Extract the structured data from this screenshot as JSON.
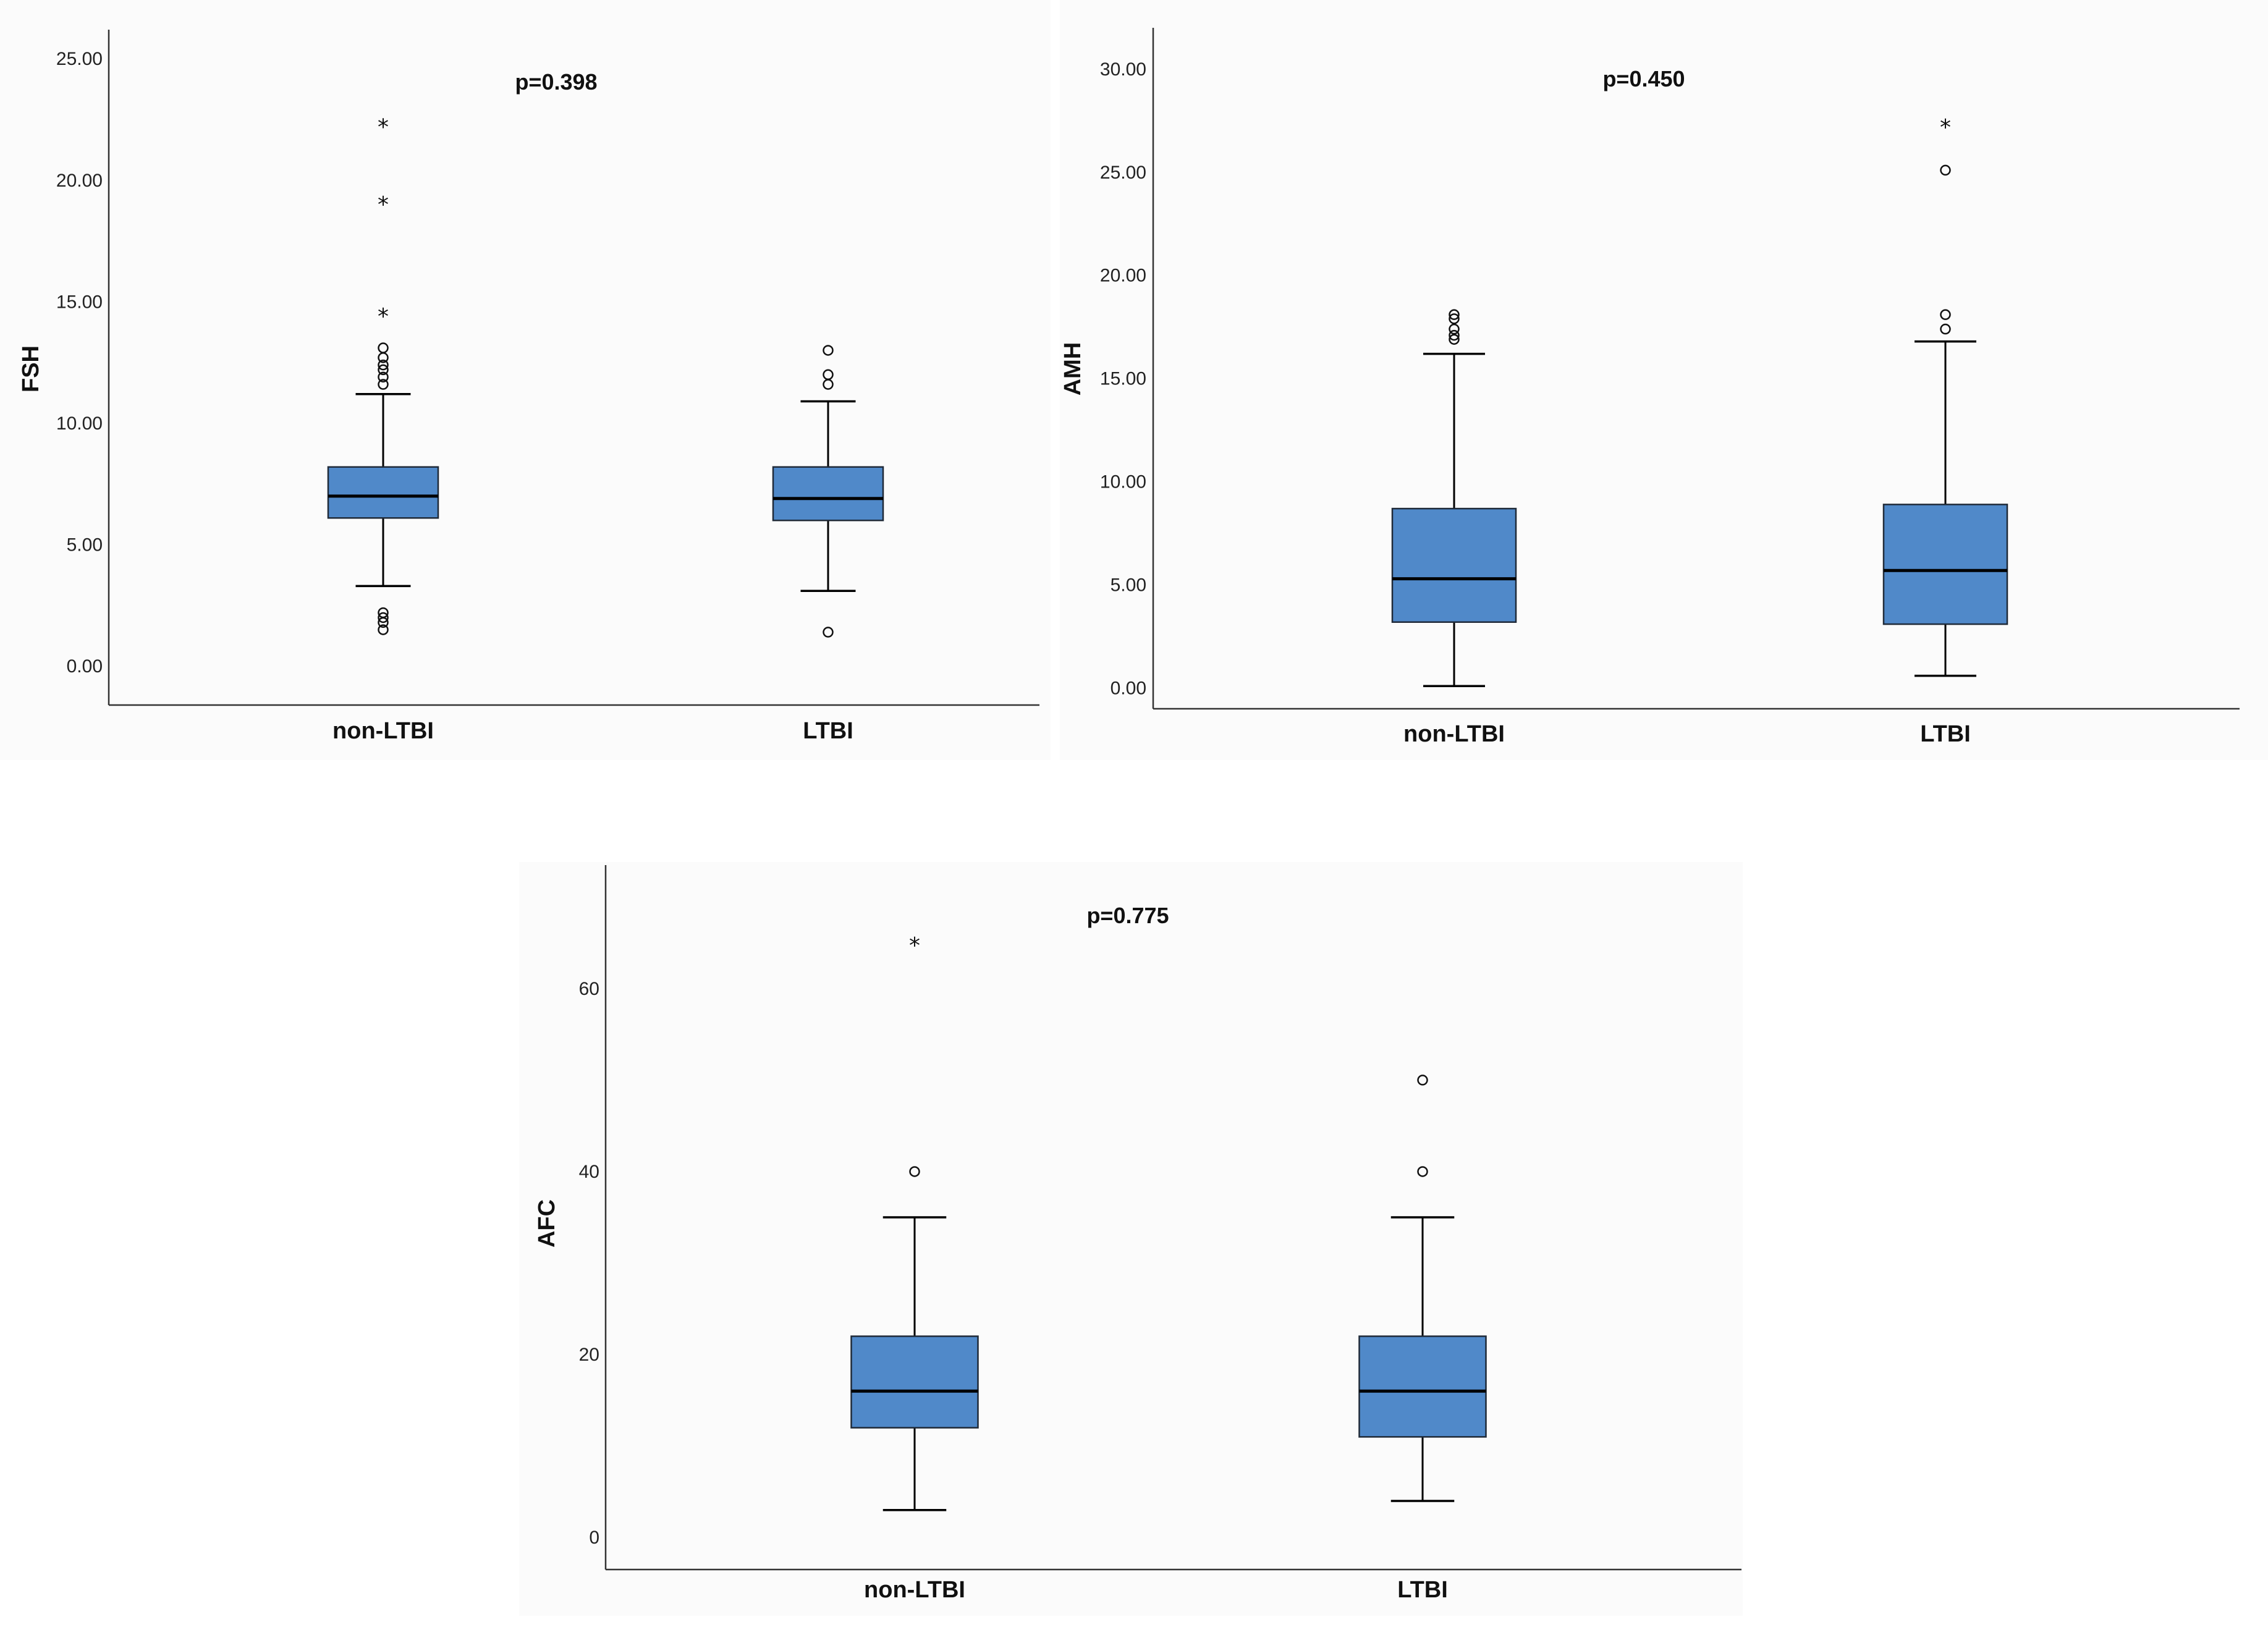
{
  "colors": {
    "box_fill": "#5089c9",
    "line": "#000000",
    "background": "#ffffff",
    "panel_bg": "#fbfbfb"
  },
  "chart_data": [
    {
      "type": "box",
      "ylabel": "FSH",
      "annotation": "p=0.398",
      "ylim": [
        -1.6,
        26.2
      ],
      "yticks": [
        0,
        5,
        10,
        15,
        20,
        25
      ],
      "tick_decimals": 2,
      "categories": [
        "non-LTBI",
        "LTBI"
      ],
      "boxes": [
        {
          "category": "non-LTBI",
          "whisker_low": 3.3,
          "q1": 6.1,
          "median": 7.0,
          "q3": 8.2,
          "whisker_high": 11.2,
          "outliers": [
            13.1,
            12.7,
            12.4,
            12.2,
            11.9,
            11.6,
            2.2,
            2.0,
            1.8,
            1.5
          ],
          "extremes": [
            22.3,
            19.1,
            14.5
          ]
        },
        {
          "category": "LTBI",
          "whisker_low": 3.1,
          "q1": 6.0,
          "median": 6.9,
          "q3": 8.2,
          "whisker_high": 10.9,
          "outliers": [
            13.0,
            12.0,
            11.6,
            1.4
          ],
          "extremes": []
        }
      ]
    },
    {
      "type": "box",
      "ylabel": "AMH",
      "annotation": "p=0.450",
      "ylim": [
        -1.0,
        32.0
      ],
      "yticks": [
        0,
        5,
        10,
        15,
        20,
        25,
        30
      ],
      "tick_decimals": 2,
      "categories": [
        "non-LTBI",
        "LTBI"
      ],
      "boxes": [
        {
          "category": "non-LTBI",
          "whisker_low": 0.1,
          "q1": 3.2,
          "median": 5.3,
          "q3": 8.7,
          "whisker_high": 16.2,
          "outliers": [
            18.1,
            17.9,
            17.4,
            17.1,
            16.9
          ],
          "extremes": []
        },
        {
          "category": "LTBI",
          "whisker_low": 0.6,
          "q1": 3.1,
          "median": 5.7,
          "q3": 8.9,
          "whisker_high": 16.8,
          "outliers": [
            25.1,
            18.1,
            17.4
          ],
          "extremes": [
            27.3
          ]
        }
      ]
    },
    {
      "type": "box",
      "ylabel": "AFC",
      "annotation": "p=0.775",
      "ylim": [
        -3.5,
        73.5
      ],
      "yticks": [
        0,
        20,
        40,
        60
      ],
      "tick_decimals": 0,
      "categories": [
        "non-LTBI",
        "LTBI"
      ],
      "boxes": [
        {
          "category": "non-LTBI",
          "whisker_low": 3,
          "q1": 12,
          "median": 16,
          "q3": 22,
          "whisker_high": 35,
          "outliers": [
            40
          ],
          "extremes": [
            65
          ]
        },
        {
          "category": "LTBI",
          "whisker_low": 4,
          "q1": 11,
          "median": 16,
          "q3": 22,
          "whisker_high": 35,
          "outliers": [
            50,
            40
          ],
          "extremes": []
        }
      ]
    }
  ]
}
